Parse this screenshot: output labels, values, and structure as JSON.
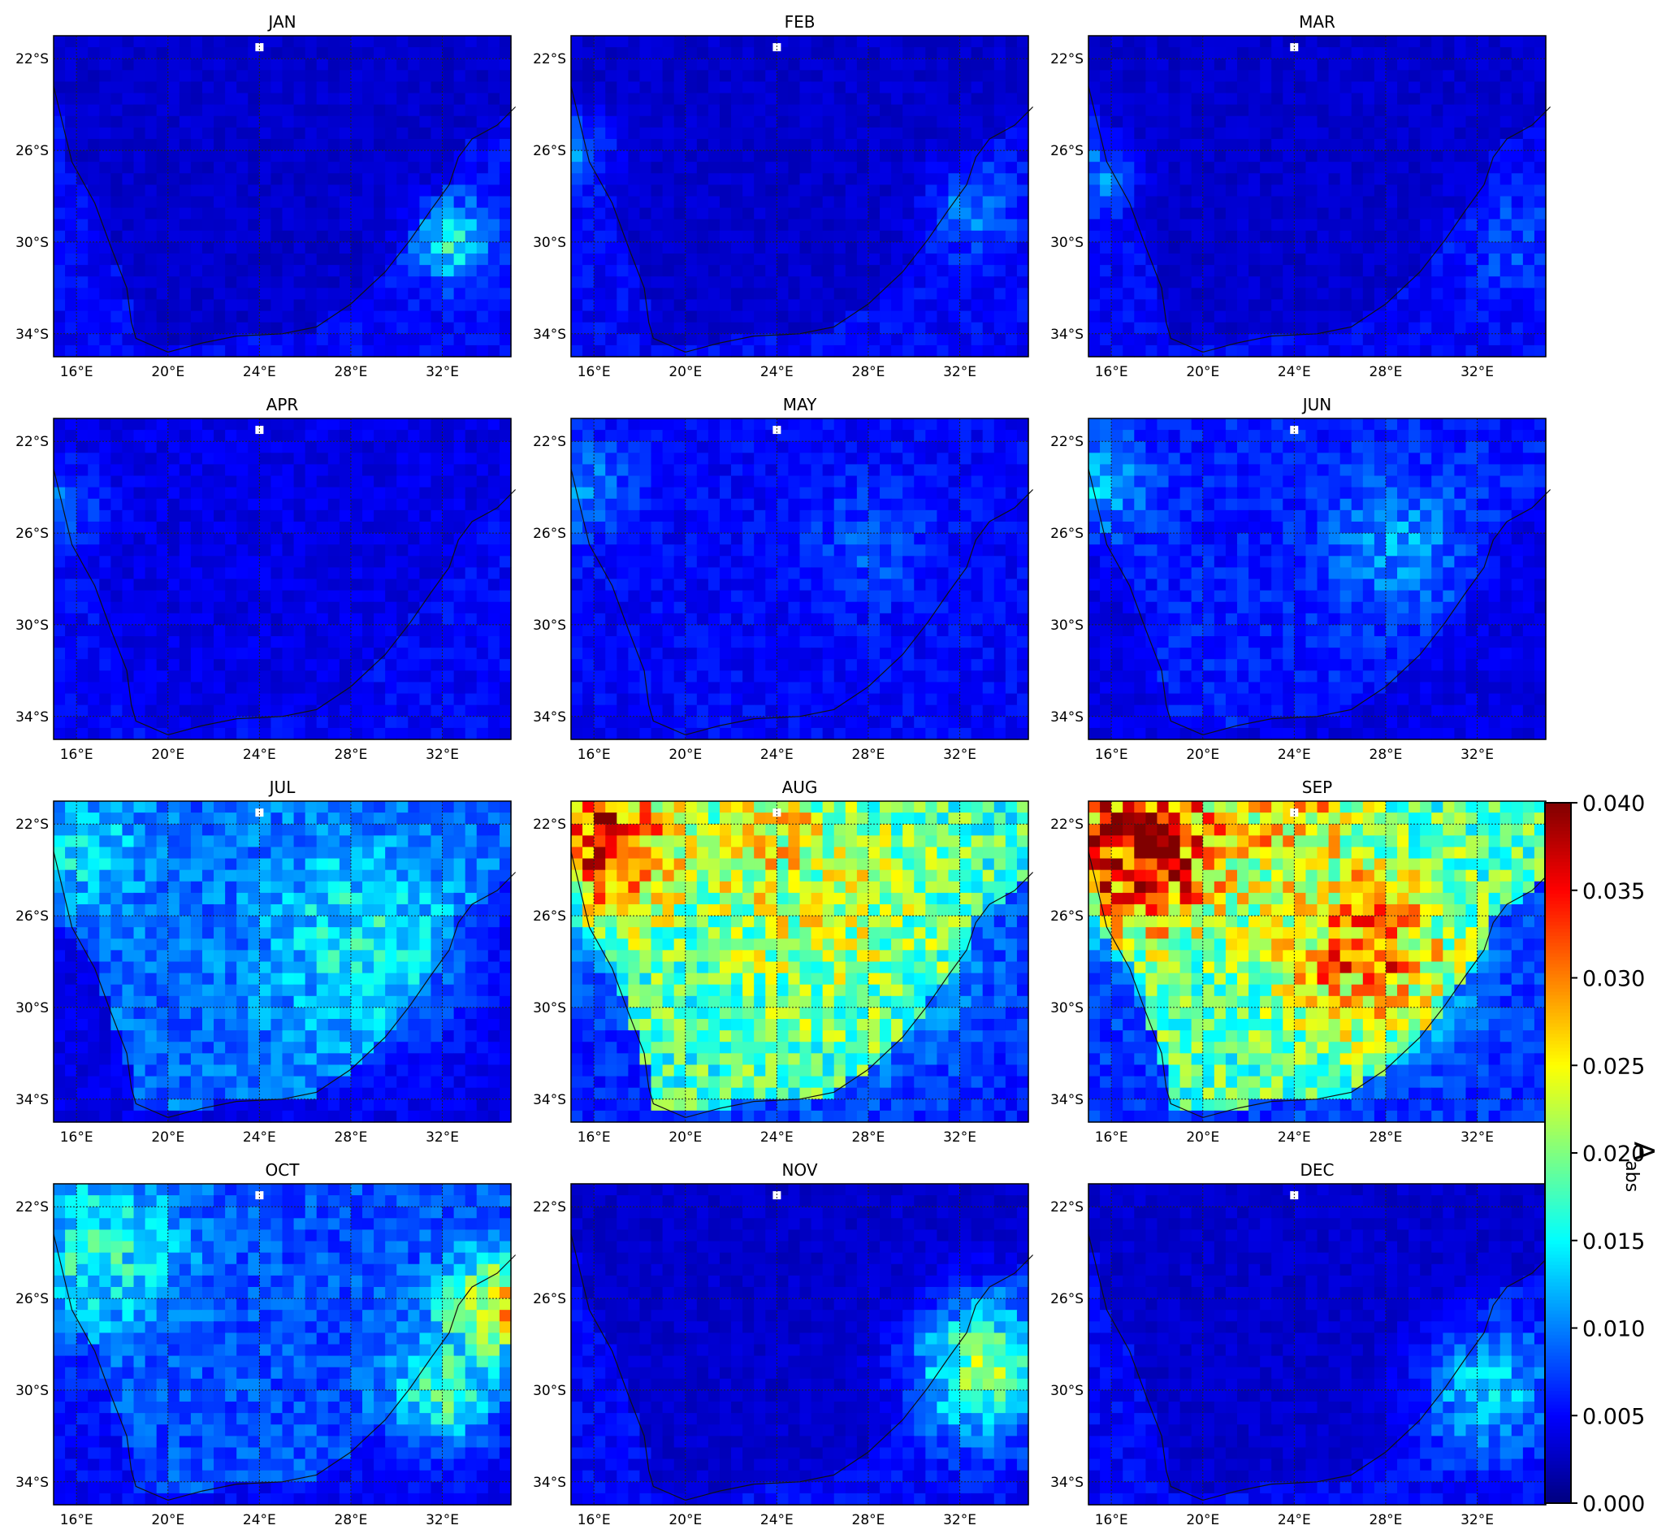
{
  "colorbar": {
    "label_main": "A",
    "label_sub": "abs",
    "ticks": [
      "0.000",
      "0.005",
      "0.010",
      "0.015",
      "0.020",
      "0.025",
      "0.030",
      "0.035",
      "0.040"
    ],
    "colormap": "jet",
    "range": [
      0.0,
      0.04
    ]
  },
  "chart_data": {
    "type": "heatmap",
    "colormap": "jet",
    "value_range": [
      0.0,
      0.04
    ],
    "lon_range": [
      15,
      35
    ],
    "lat_range": [
      -35,
      -21
    ],
    "x_ticks": [
      "16°E",
      "20°E",
      "24°E",
      "28°E",
      "32°E"
    ],
    "y_ticks": [
      "22°S",
      "26°S",
      "30°S",
      "34°S"
    ],
    "grid": true,
    "panels": [
      {
        "title": "JAN",
        "mean_land": 0.003,
        "mean_ocean": 0.005,
        "hotspots": [
          {
            "lon": 32.5,
            "lat": -30,
            "r": 1.2,
            "v": 0.016
          }
        ]
      },
      {
        "title": "FEB",
        "mean_land": 0.003,
        "mean_ocean": 0.005,
        "hotspots": [
          {
            "lon": 32.5,
            "lat": -28.5,
            "r": 1.3,
            "v": 0.01
          },
          {
            "lon": 15.3,
            "lat": -26,
            "r": 1.0,
            "v": 0.01
          }
        ]
      },
      {
        "title": "MAR",
        "mean_land": 0.003,
        "mean_ocean": 0.005,
        "hotspots": [
          {
            "lon": 33.5,
            "lat": -30,
            "r": 1.5,
            "v": 0.008
          },
          {
            "lon": 15.5,
            "lat": -27,
            "r": 1.0,
            "v": 0.01
          }
        ]
      },
      {
        "title": "APR",
        "mean_land": 0.004,
        "mean_ocean": 0.005,
        "hotspots": [
          {
            "lon": 15.3,
            "lat": -25,
            "r": 1.3,
            "v": 0.009
          }
        ]
      },
      {
        "title": "MAY",
        "mean_land": 0.005,
        "mean_ocean": 0.005,
        "hotspots": [
          {
            "lon": 15.3,
            "lat": -24,
            "r": 1.5,
            "v": 0.011
          },
          {
            "lon": 28,
            "lat": -26.5,
            "r": 2.0,
            "v": 0.008
          }
        ]
      },
      {
        "title": "JUN",
        "mean_land": 0.006,
        "mean_ocean": 0.004,
        "hotspots": [
          {
            "lon": 15.3,
            "lat": -24,
            "r": 1.5,
            "v": 0.012
          },
          {
            "lon": 28.5,
            "lat": -26.5,
            "r": 2.0,
            "v": 0.011
          }
        ]
      },
      {
        "title": "JUL",
        "mean_land": 0.009,
        "mean_ocean": 0.004,
        "hotspots": [
          {
            "lon": 28.5,
            "lat": -27,
            "r": 3.0,
            "v": 0.015
          },
          {
            "lon": 16,
            "lat": -23,
            "r": 2.0,
            "v": 0.014
          }
        ]
      },
      {
        "title": "AUG",
        "mean_land": 0.017,
        "mean_ocean": 0.006,
        "hotspots": [
          {
            "lon": 16,
            "lat": -22,
            "r": 3.0,
            "v": 0.034
          },
          {
            "lon": 24.5,
            "lat": -23.5,
            "r": 2.0,
            "v": 0.029
          },
          {
            "lon": 26,
            "lat": -26,
            "r": 4.0,
            "v": 0.022
          }
        ]
      },
      {
        "title": "SEP",
        "mean_land": 0.018,
        "mean_ocean": 0.007,
        "hotspots": [
          {
            "lon": 17.5,
            "lat": -23,
            "r": 2.5,
            "v": 0.039
          },
          {
            "lon": 27,
            "lat": -27.5,
            "r": 2.5,
            "v": 0.031
          },
          {
            "lon": 24,
            "lat": -22,
            "r": 2.0,
            "v": 0.027
          }
        ]
      },
      {
        "title": "OCT",
        "mean_land": 0.008,
        "mean_ocean": 0.005,
        "hotspots": [
          {
            "lon": 34.2,
            "lat": -26.5,
            "r": 1.5,
            "v": 0.027
          },
          {
            "lon": 17,
            "lat": -24,
            "r": 2.5,
            "v": 0.016
          },
          {
            "lon": 32,
            "lat": -30,
            "r": 1.5,
            "v": 0.019
          }
        ]
      },
      {
        "title": "NOV",
        "mean_land": 0.003,
        "mean_ocean": 0.005,
        "hotspots": [
          {
            "lon": 33,
            "lat": -29,
            "r": 2.0,
            "v": 0.02
          }
        ]
      },
      {
        "title": "DEC",
        "mean_land": 0.003,
        "mean_ocean": 0.005,
        "hotspots": [
          {
            "lon": 32.5,
            "lat": -30,
            "r": 2.0,
            "v": 0.013
          }
        ]
      }
    ]
  }
}
